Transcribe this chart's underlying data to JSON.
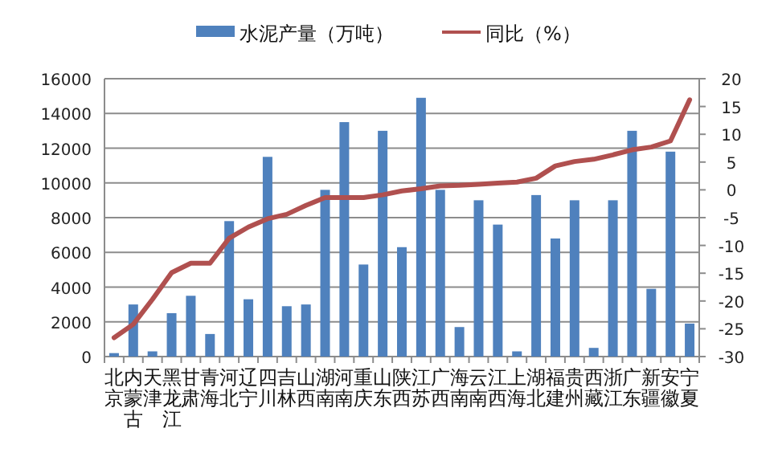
{
  "chart_data": {
    "type": "bar",
    "categories": [
      "北京",
      "内蒙古",
      "天津",
      "黑龙江",
      "甘肃",
      "青海",
      "河北",
      "辽宁",
      "四川",
      "吉林",
      "山西",
      "湖南",
      "河南",
      "重庆",
      "山东",
      "陕西",
      "江苏",
      "广西",
      "海南",
      "云南",
      "江西",
      "上海",
      "湖北",
      "福建",
      "贵州",
      "西藏",
      "浙江",
      "广东",
      "新疆",
      "安徽",
      "宁夏"
    ],
    "series": [
      {
        "name": "水泥产量（万吨）",
        "color": "#4f81bd",
        "values": [
          200,
          3000,
          300,
          2500,
          3500,
          1300,
          7800,
          3300,
          11500,
          2900,
          3000,
          9600,
          13500,
          5300,
          13000,
          6300,
          14900,
          9600,
          1700,
          9000,
          7600,
          300,
          9300,
          6800,
          9000,
          500,
          9000,
          13000,
          3900,
          11800,
          1900
        ]
      },
      {
        "name": "同比（%）",
        "type": "line",
        "axis": "y2",
        "color": "#b0504f",
        "values": [
          -26.6,
          -24.2,
          -19.7,
          -14.9,
          -13.2,
          -13.2,
          -8.7,
          -6.7,
          -5.2,
          -4.4,
          -2.8,
          -1.4,
          -1.4,
          -1.4,
          -0.9,
          -0.2,
          0.2,
          0.7,
          0.8,
          1.0,
          1.2,
          1.4,
          2.1,
          4.3,
          5.1,
          5.5,
          6.3,
          7.2,
          7.7,
          8.8,
          16.2
        ]
      }
    ],
    "ylim": [
      0,
      16000
    ],
    "yticks": [
      0,
      2000,
      4000,
      6000,
      8000,
      10000,
      12000,
      14000,
      16000
    ],
    "y2lim": [
      -30,
      20
    ],
    "y2ticks": [
      -30,
      -25,
      -20,
      -15,
      -10,
      -5,
      0,
      5,
      10,
      15,
      20
    ],
    "grid": "y",
    "legend": "top"
  }
}
